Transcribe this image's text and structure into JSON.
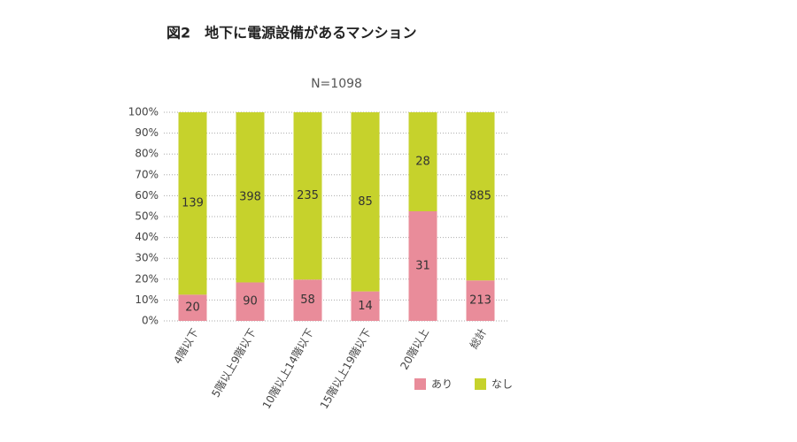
{
  "chart_data": {
    "type": "bar",
    "stacked": "percent",
    "title": "図2　地下に電源設備があるマンション",
    "subtitle": "N=1098",
    "categories": [
      "4階以下",
      "5階以上9階以下",
      "10階以上14階以下",
      "15階以上19階以下",
      "20階以上",
      "総計"
    ],
    "series": [
      {
        "name": "あり",
        "color": "#e98c9a",
        "values": [
          20,
          90,
          58,
          14,
          31,
          213
        ]
      },
      {
        "name": "なし",
        "color": "#c6d22c",
        "values": [
          139,
          398,
          235,
          85,
          28,
          885
        ]
      }
    ],
    "ylim": [
      0,
      100
    ],
    "yticks": [
      {
        "value": 0,
        "label": "0%"
      },
      {
        "value": 10,
        "label": "10%"
      },
      {
        "value": 20,
        "label": "20%"
      },
      {
        "value": 30,
        "label": "30%"
      },
      {
        "value": 40,
        "label": "40%"
      },
      {
        "value": 50,
        "label": "50%"
      },
      {
        "value": 60,
        "label": "60%"
      },
      {
        "value": 70,
        "label": "70%"
      },
      {
        "value": 80,
        "label": "80%"
      },
      {
        "value": 90,
        "label": "90%"
      },
      {
        "value": 100,
        "label": "100%"
      }
    ],
    "grid": true,
    "legend": "bottom-right"
  }
}
